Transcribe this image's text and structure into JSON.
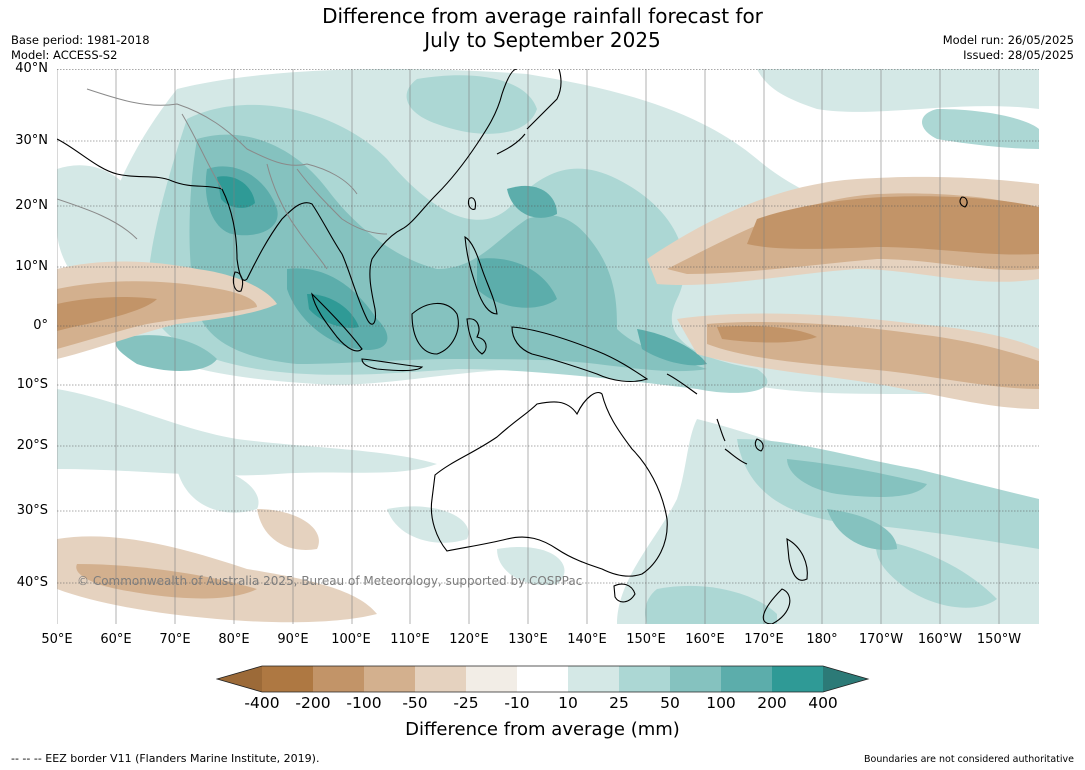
{
  "title_line1": "Difference from average rainfall forecast for",
  "title_line2": "July to September 2025",
  "base_period": "Base period: 1981-2018",
  "model": "Model: ACCESS-S2",
  "model_run": "Model run: 26/05/2025",
  "issued": "Issued: 28/05/2025",
  "lat_labels": [
    "40°N",
    "30°N",
    "20°N",
    "10°N",
    "0°",
    "10°S",
    "20°S",
    "30°S",
    "40°S"
  ],
  "lon_labels": [
    "50°E",
    "60°E",
    "70°E",
    "80°E",
    "90°E",
    "100°E",
    "110°E",
    "120°E",
    "130°E",
    "140°E",
    "150°E",
    "160°E",
    "170°E",
    "180°",
    "170°W",
    "160°W",
    "150°W"
  ],
  "legend": {
    "ticks": [
      "-400",
      "-200",
      "-100",
      "-50",
      "-25",
      "-10",
      "10",
      "25",
      "50",
      "100",
      "200",
      "400"
    ],
    "colors": [
      "#9c6a38",
      "#ae7842",
      "#c29468",
      "#d3b08e",
      "#e5d2bf",
      "#f2ede6",
      "#ffffff",
      "#d4e8e6",
      "#acd7d4",
      "#85c2bf",
      "#5cadab",
      "#2f9a96",
      "#2c7a77"
    ],
    "title": "Difference from average (mm)"
  },
  "eez_note": "--  --  -- EEZ border V11 (Flanders Marine Institute, 2019).",
  "boundary_note": "Boundaries are not considered authoritative",
  "copyright": "© Commonwealth of Australia 2025, Bureau of Meteorology, supported by COSPPac"
}
